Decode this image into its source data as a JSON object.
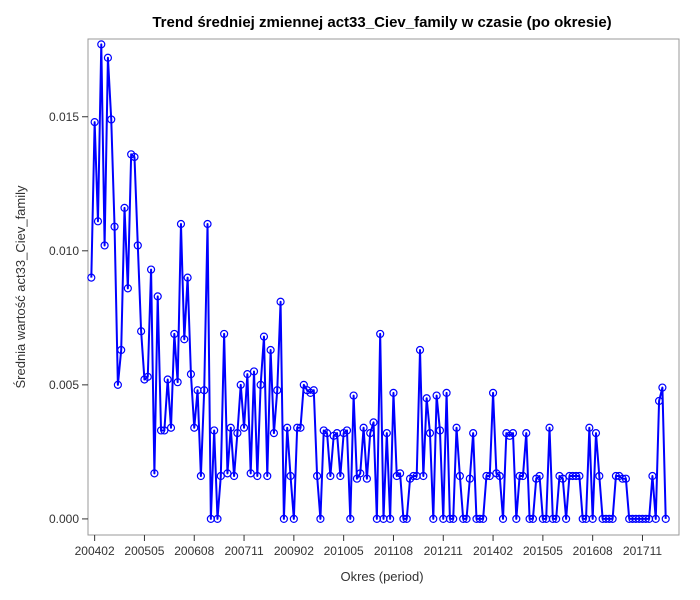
{
  "chart_data": {
    "type": "line",
    "title": "Trend średniej zmiennej act33_Ciev_family w czasie (po okresie)",
    "xlabel": "Okres (period)",
    "ylabel": "Średnia wartość act33_Ciev_family",
    "x_start": "2004-01",
    "x_step_months": 1,
    "xlim": [
      "2003-12",
      "2018-10"
    ],
    "ylim": [
      -0.0006,
      0.0179
    ],
    "x_tick_labels": [
      "200402",
      "200505",
      "200608",
      "200711",
      "200902",
      "201005",
      "201108",
      "201211",
      "201402",
      "201505",
      "201608",
      "201711"
    ],
    "x_tick_values": [
      "2004-02",
      "2005-05",
      "2006-08",
      "2007-11",
      "2009-02",
      "2010-05",
      "2011-08",
      "2012-11",
      "2014-02",
      "2015-05",
      "2016-08",
      "2017-11"
    ],
    "y_ticks": [
      0.0,
      0.005,
      0.01,
      0.015
    ],
    "y_tick_labels": [
      "0.000",
      "0.005",
      "0.010",
      "0.015"
    ],
    "grid": false,
    "series": [
      {
        "color": "#0000ff",
        "marker": "circle",
        "values": [
          0.009,
          0.0148,
          0.0111,
          0.0177,
          0.0102,
          0.0172,
          0.0149,
          0.0109,
          0.005,
          0.0063,
          0.0116,
          0.0086,
          0.0136,
          0.0135,
          0.0102,
          0.007,
          0.0052,
          0.0053,
          0.0093,
          0.0017,
          0.0083,
          0.0033,
          0.0033,
          0.0052,
          0.0034,
          0.0069,
          0.0051,
          0.011,
          0.0067,
          0.009,
          0.0054,
          0.0034,
          0.0048,
          0.0016,
          0.0048,
          0.011,
          0.0,
          0.0033,
          0.0,
          0.0016,
          0.0069,
          0.0017,
          0.0034,
          0.0016,
          0.0032,
          0.005,
          0.0034,
          0.0054,
          0.0017,
          0.0055,
          0.0016,
          0.005,
          0.0068,
          0.0016,
          0.0063,
          0.0032,
          0.0048,
          0.0081,
          0.0,
          0.0034,
          0.0016,
          0.0,
          0.0034,
          0.0034,
          0.005,
          0.0048,
          0.0047,
          0.0048,
          0.0016,
          0.0,
          0.0033,
          0.0032,
          0.0016,
          0.0031,
          0.0032,
          0.0016,
          0.0032,
          0.0033,
          0.0,
          0.0046,
          0.0015,
          0.0017,
          0.0034,
          0.0015,
          0.0032,
          0.0036,
          0.0,
          0.0069,
          0.0,
          0.0032,
          0.0,
          0.0047,
          0.0016,
          0.0017,
          0.0,
          0.0,
          0.0015,
          0.0016,
          0.0016,
          0.0063,
          0.0016,
          0.0045,
          0.0032,
          0.0,
          0.0046,
          0.0033,
          0.0,
          0.0047,
          0.0,
          0.0,
          0.0034,
          0.0016,
          0.0,
          0.0,
          0.0015,
          0.0032,
          0.0,
          0.0,
          0.0,
          0.0016,
          0.0016,
          0.0047,
          0.0017,
          0.0016,
          0.0,
          0.0032,
          0.0031,
          0.0032,
          0.0,
          0.0016,
          0.0016,
          0.0032,
          0.0,
          0.0,
          0.0015,
          0.0016,
          0.0,
          0.0,
          0.0034,
          0.0,
          0.0,
          0.0016,
          0.0015,
          0.0,
          0.0016,
          0.0016,
          0.0016,
          0.0016,
          0.0,
          0.0,
          0.0034,
          0.0,
          0.0032,
          0.0016,
          0.0,
          0.0,
          0.0,
          0.0,
          0.0016,
          0.0016,
          0.0015,
          0.0015,
          0.0,
          0.0,
          0.0,
          0.0,
          0.0,
          0.0,
          0.0,
          0.0016,
          0.0,
          0.0044,
          0.0049,
          0.0
        ]
      }
    ]
  }
}
